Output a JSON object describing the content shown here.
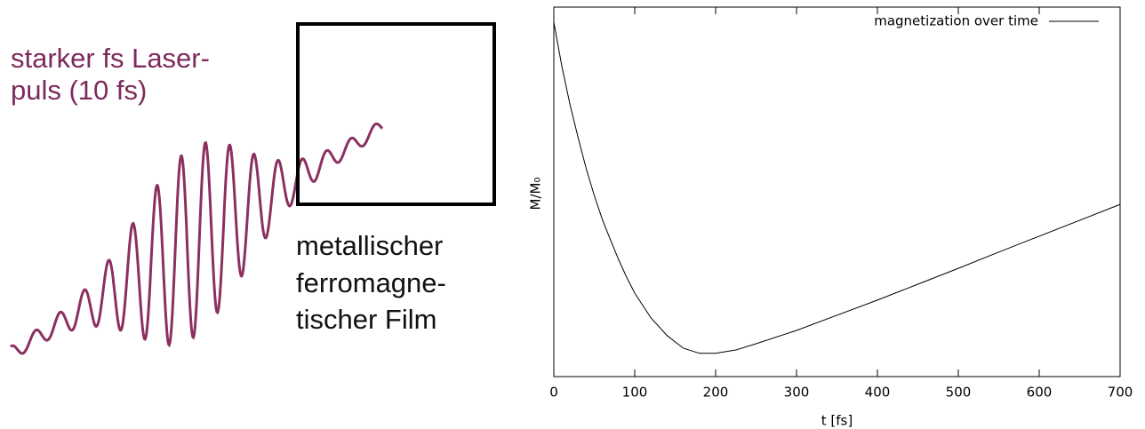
{
  "diagram": {
    "laser_label": [
      "starker fs Laser-",
      "puls (10 fs)"
    ],
    "film_label": [
      "metallischer",
      "ferromagne-",
      "tischer Film"
    ]
  },
  "chart_data": {
    "type": "line",
    "xlabel": "t [fs]",
    "ylabel": "M/M₀",
    "x": [
      0,
      10,
      20,
      30,
      40,
      50,
      60,
      70,
      80,
      90,
      100,
      120,
      140,
      160,
      180,
      200,
      225,
      250,
      300,
      350,
      400,
      450,
      500,
      550,
      600,
      650,
      700
    ],
    "series": [
      {
        "name": "magnetization over time",
        "color": "#000000",
        "values": [
          0.959,
          0.839,
          0.736,
          0.647,
          0.563,
          0.49,
          0.425,
          0.37,
          0.317,
          0.269,
          0.226,
          0.159,
          0.111,
          0.077,
          0.063,
          0.063,
          0.072,
          0.089,
          0.125,
          0.166,
          0.207,
          0.25,
          0.293,
          0.337,
          0.38,
          0.423,
          0.466
        ]
      }
    ],
    "xlim": [
      0,
      700
    ],
    "xticks": [
      0,
      100,
      200,
      300,
      400,
      500,
      600,
      700
    ],
    "ylim": [
      0,
      1
    ],
    "legend": "upper right"
  }
}
